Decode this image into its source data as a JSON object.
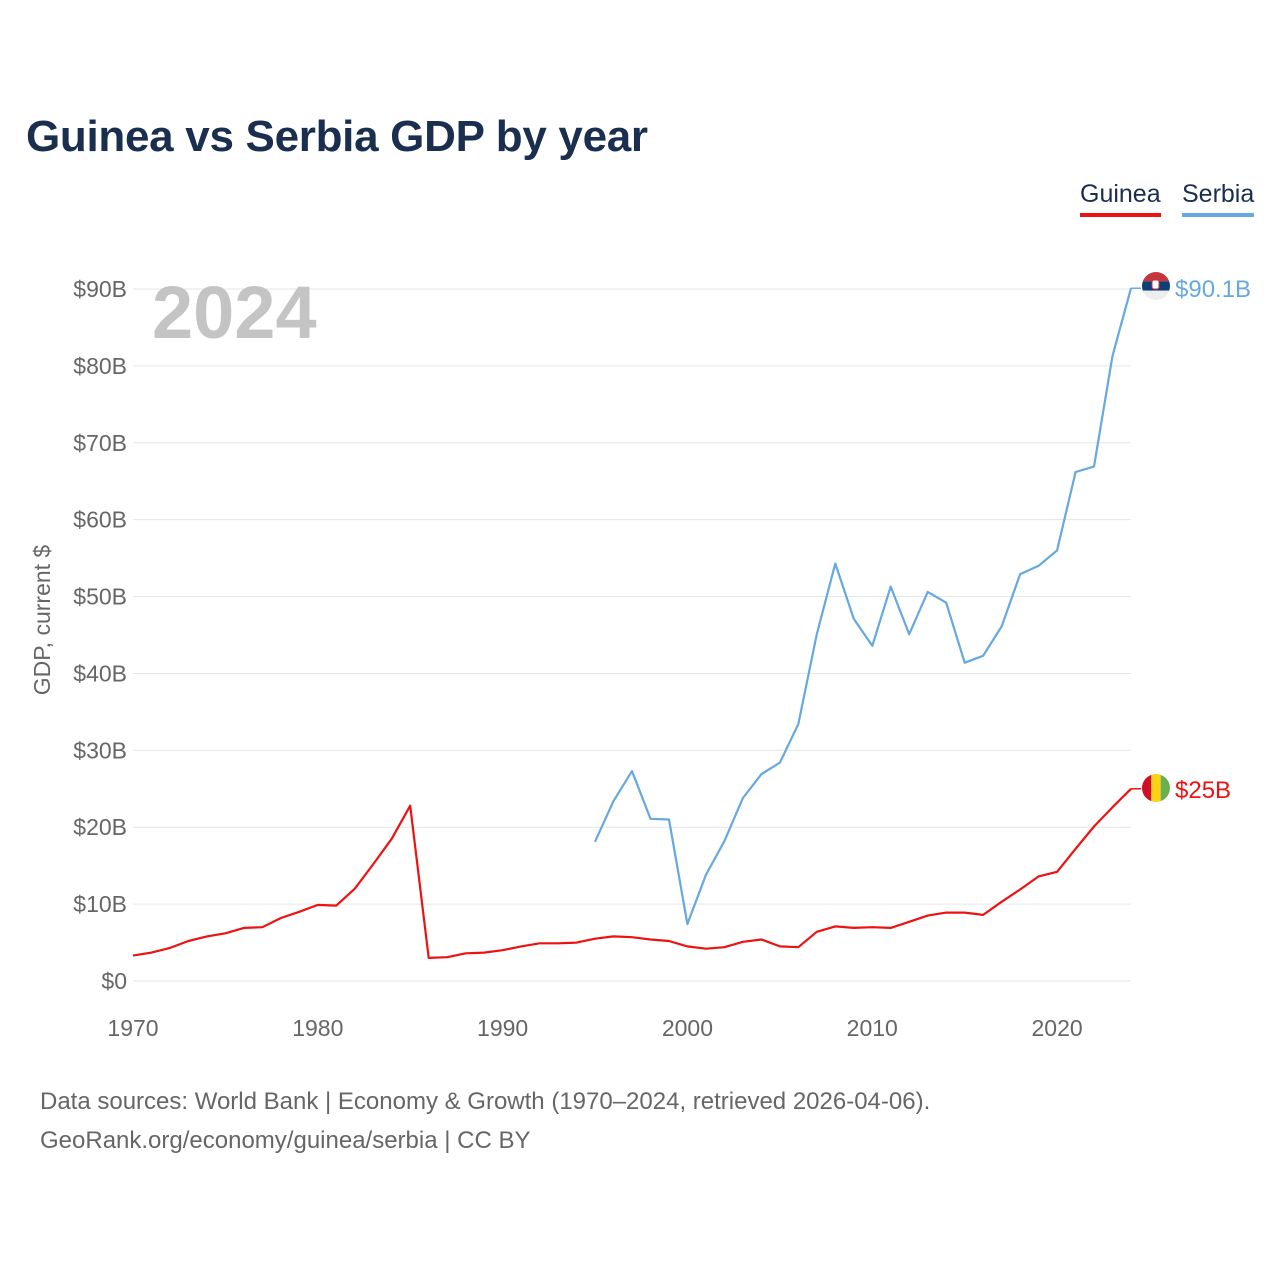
{
  "header": {
    "title": "Guinea vs Serbia GDP by year"
  },
  "legend": {
    "guinea_label": "Guinea",
    "serbia_label": "Serbia"
  },
  "footer": {
    "sources": "Data sources: World Bank | Economy & Growth (1970–2024, retrieved 2026-04-06).",
    "attribution": "GeoRank.org/economy/guinea/serbia | CC BY"
  },
  "colors": {
    "guinea": "#ee1111",
    "serbia": "#66a8e0",
    "title": "#1a2e4f",
    "axis_text": "#666666",
    "year_watermark": "#c4c4c4",
    "grid": "#e6e6e6"
  },
  "chart_data": {
    "type": "line",
    "title": "Guinea vs Serbia GDP by year",
    "xlabel": "",
    "ylabel": "GDP, current $",
    "year_label": "2024",
    "xlim": [
      1970,
      2024
    ],
    "ylim": [
      0,
      90
    ],
    "x_ticks": [
      1970,
      1980,
      1990,
      2000,
      2010,
      2020
    ],
    "y_ticks": [
      {
        "value": 0,
        "label": "$0"
      },
      {
        "value": 10,
        "label": "$10B"
      },
      {
        "value": 20,
        "label": "$20B"
      },
      {
        "value": 30,
        "label": "$30B"
      },
      {
        "value": 40,
        "label": "$40B"
      },
      {
        "value": 50,
        "label": "$50B"
      },
      {
        "value": 60,
        "label": "$60B"
      },
      {
        "value": 70,
        "label": "$70B"
      },
      {
        "value": 80,
        "label": "$80B"
      },
      {
        "value": 90,
        "label": "$90B"
      }
    ],
    "grid": true,
    "legend_position": "top-right",
    "series": [
      {
        "name": "Guinea",
        "color": "#ee1111",
        "end_label": "$25B",
        "flag": "guinea-flag",
        "x": [
          1970,
          1971,
          1972,
          1973,
          1974,
          1975,
          1976,
          1977,
          1978,
          1979,
          1980,
          1981,
          1982,
          1983,
          1984,
          1985,
          1986,
          1987,
          1988,
          1989,
          1990,
          1991,
          1992,
          1993,
          1994,
          1995,
          1996,
          1997,
          1998,
          1999,
          2000,
          2001,
          2002,
          2003,
          2004,
          2005,
          2006,
          2007,
          2008,
          2009,
          2010,
          2011,
          2012,
          2013,
          2014,
          2015,
          2016,
          2017,
          2018,
          2019,
          2020,
          2021,
          2022,
          2023,
          2024
        ],
        "values": [
          3.3,
          3.7,
          4.3,
          5.2,
          5.8,
          6.2,
          6.9,
          7.0,
          8.2,
          9.0,
          9.9,
          9.8,
          12.0,
          15.2,
          18.5,
          22.8,
          3.0,
          3.1,
          3.6,
          3.7,
          4.0,
          4.5,
          4.9,
          4.9,
          5.0,
          5.5,
          5.8,
          5.7,
          5.4,
          5.2,
          4.5,
          4.2,
          4.4,
          5.1,
          5.4,
          4.5,
          4.4,
          6.4,
          7.1,
          6.9,
          7.0,
          6.9,
          7.7,
          8.5,
          8.9,
          8.9,
          8.6,
          10.3,
          11.9,
          13.6,
          14.2,
          17.2,
          20.1,
          22.6,
          25.0
        ]
      },
      {
        "name": "Serbia",
        "color": "#66a8e0",
        "end_label": "$90.1B",
        "flag": "serbia-flag",
        "x": [
          1995,
          1996,
          1997,
          1998,
          1999,
          2000,
          2001,
          2002,
          2003,
          2004,
          2005,
          2006,
          2007,
          2008,
          2009,
          2010,
          2011,
          2012,
          2013,
          2014,
          2015,
          2016,
          2017,
          2018,
          2019,
          2020,
          2021,
          2022,
          2023,
          2024
        ],
        "values": [
          18.1,
          23.4,
          27.3,
          21.1,
          21.0,
          7.4,
          13.8,
          18.2,
          23.8,
          26.9,
          28.4,
          33.4,
          45.1,
          54.3,
          47.1,
          43.6,
          51.3,
          45.1,
          50.6,
          49.2,
          41.4,
          42.3,
          46.1,
          52.9,
          54.0,
          56.0,
          66.2,
          66.9,
          81.3,
          90.1
        ]
      }
    ]
  }
}
